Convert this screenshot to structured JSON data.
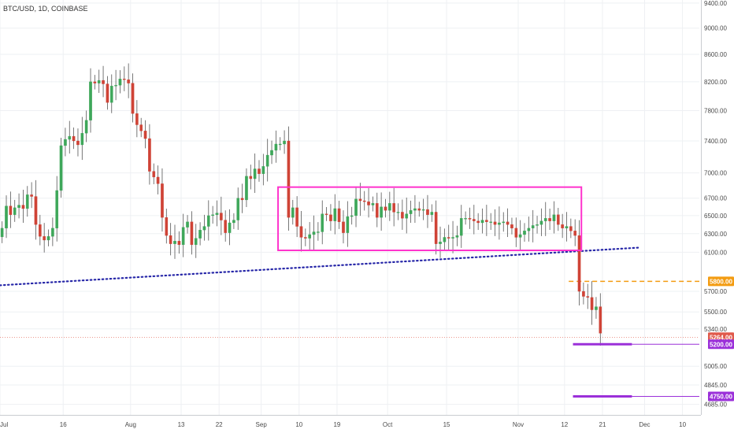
{
  "chart_data": {
    "type": "candlestick",
    "title": "BTC/USD, 1D, COINBASE",
    "colors": {
      "up": "#3ea75a",
      "down": "#cf4336",
      "grid": "#eef0f3",
      "box": "#ff33cc",
      "trendline": "#2727a8",
      "resistance": "#f39c12",
      "support": "#9b30d9",
      "last": "#e05a4b",
      "axis": "#4a4a4a"
    },
    "y_scale": "log",
    "ylim": [
      4600,
      9450
    ],
    "y_ticks": [
      "9400.00",
      "9000.00",
      "8600.00",
      "8200.00",
      "7800.00",
      "7400.00",
      "7000.00",
      "6700.00",
      "6500.00",
      "6300.00",
      "6100.00",
      "5700.00",
      "5500.00",
      "5340.00",
      "5005.00",
      "4845.00",
      "4685.00"
    ],
    "x_start": "2018-07-01",
    "x_end": "2018-12-14",
    "x_ticks": [
      {
        "date": "2018-07-01",
        "label": "Jul"
      },
      {
        "date": "2018-07-16",
        "label": "16"
      },
      {
        "date": "2018-08-01",
        "label": "Aug"
      },
      {
        "date": "2018-08-13",
        "label": "13"
      },
      {
        "date": "2018-08-22",
        "label": "22"
      },
      {
        "date": "2018-09-01",
        "label": "Sep"
      },
      {
        "date": "2018-09-10",
        "label": "10"
      },
      {
        "date": "2018-09-19",
        "label": "19"
      },
      {
        "date": "2018-10-01",
        "label": "Oct"
      },
      {
        "date": "2018-10-15",
        "label": "15"
      },
      {
        "date": "2018-11-01",
        "label": "Nov"
      },
      {
        "date": "2018-11-12",
        "label": "12"
      },
      {
        "date": "2018-11-21",
        "label": "21"
      },
      {
        "date": "2018-12-01",
        "label": "Dec"
      },
      {
        "date": "2018-12-10",
        "label": "10"
      }
    ],
    "close": [
      6360,
      6610,
      6510,
      6590,
      6620,
      6580,
      6740,
      6720,
      6400,
      6270,
      6230,
      6270,
      6360,
      6790,
      7340,
      7420,
      7460,
      7400,
      7350,
      7500,
      7670,
      8200,
      8180,
      8220,
      8170,
      7910,
      8140,
      8150,
      8240,
      8230,
      8180,
      7760,
      7610,
      7530,
      7430,
      7020,
      6950,
      6870,
      6480,
      6280,
      6190,
      6220,
      6180,
      6370,
      6430,
      6180,
      6250,
      6340,
      6380,
      6500,
      6510,
      6530,
      6450,
      6310,
      6420,
      6450,
      6700,
      6680,
      6960,
      6930,
      7050,
      6990,
      7080,
      7220,
      7280,
      7360,
      7360,
      7400,
      6480,
      6590,
      6380,
      6260,
      6250,
      6290,
      6320,
      6320,
      6520,
      6510,
      6440,
      6580,
      6430,
      6310,
      6490,
      6500,
      6690,
      6670,
      6660,
      6620,
      6640,
      6480,
      6600,
      6560,
      6640,
      6540,
      6540,
      6470,
      6520,
      6560,
      6580,
      6560,
      6570,
      6510,
      6540,
      6190,
      6210,
      6260,
      6250,
      6260,
      6280,
      6470,
      6470,
      6460,
      6440,
      6420,
      6450,
      6430,
      6430,
      6400,
      6420,
      6430,
      6400,
      6360,
      6260,
      6290,
      6330,
      6360,
      6390,
      6400,
      6440,
      6470,
      6440,
      6510,
      6400,
      6360,
      6380,
      6330,
      6280,
      5700,
      5650,
      5640,
      5520,
      5550,
      5300
    ]
  },
  "overlays": {
    "box": {
      "x0": "2018-09-05",
      "x1": "2018-11-16",
      "y_top": 6830,
      "y_bottom": 6120
    },
    "trendline": {
      "x0": "2018-07-01",
      "y0": 5760,
      "x1": "2018-11-30",
      "y1": 6150
    },
    "resistance": {
      "value": 5800,
      "label": "5800.00",
      "x0": "2018-11-13"
    },
    "current": {
      "value": 5264,
      "label": "5264.00"
    },
    "supports": [
      {
        "value": 5200,
        "label": "5200.00",
        "x0": "2018-11-14",
        "x1": "2018-11-28"
      },
      {
        "value": 4750,
        "label": "4750.00",
        "x0": "2018-11-14",
        "x1": "2018-11-28"
      }
    ]
  }
}
